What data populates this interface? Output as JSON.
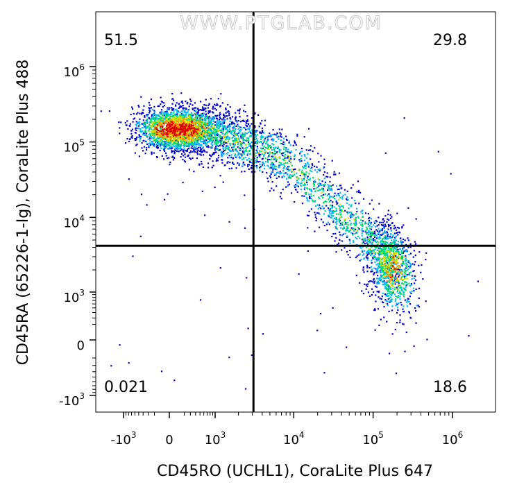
{
  "chart_data": {
    "type": "scatter",
    "title": "",
    "xlabel": "CD45RO (UCHL1), CoraLite Plus 647",
    "ylabel": "CD45RA (65226-1-Ig), CoraLite Plus 488",
    "x_scale": "biexponential",
    "y_scale": "biexponential",
    "x_tick_labels": [
      {
        "base": "-10",
        "exp": "3",
        "value": -1000
      },
      {
        "base": "0",
        "exp": "",
        "value": 0
      },
      {
        "base": "10",
        "exp": "3",
        "value": 1000
      },
      {
        "base": "10",
        "exp": "4",
        "value": 10000
      },
      {
        "base": "10",
        "exp": "5",
        "value": 100000
      },
      {
        "base": "10",
        "exp": "6",
        "value": 1000000
      }
    ],
    "y_tick_labels": [
      {
        "base": "10",
        "exp": "6",
        "value": 1000000
      },
      {
        "base": "10",
        "exp": "5",
        "value": 100000
      },
      {
        "base": "10",
        "exp": "4",
        "value": 10000
      },
      {
        "base": "10",
        "exp": "3",
        "value": 1000
      },
      {
        "base": "0",
        "exp": "",
        "value": 0
      },
      {
        "base": "-10",
        "exp": "3",
        "value": -1000
      }
    ],
    "gate": {
      "x": 3100,
      "y": 4200
    },
    "quadrants": [
      {
        "position": "top-left",
        "label": "51.5"
      },
      {
        "position": "top-right",
        "label": "29.8"
      },
      {
        "position": "bottom-left",
        "label": "0.021"
      },
      {
        "position": "bottom-right",
        "label": "18.6"
      }
    ],
    "populations": [
      {
        "name": "",
        "x_center": 500,
        "y_center": 150000,
        "x_spread": 900,
        "y_spread": 0.35
      },
      {
        "name": "",
        "x_center": 8000,
        "y_center": 60000,
        "x_spread": 6000,
        "y_spread": 0.4
      },
      {
        "name": "",
        "x_center": 250000,
        "y_center": 1300,
        "x_spread": 100000,
        "y_spread": 0.4
      }
    ],
    "density_colors": [
      "#0000c8",
      "#00b4ff",
      "#00dc64",
      "#dcdc00",
      "#ff8c00",
      "#e00000"
    ],
    "watermark": "WWW.PTGLAB.COM"
  }
}
